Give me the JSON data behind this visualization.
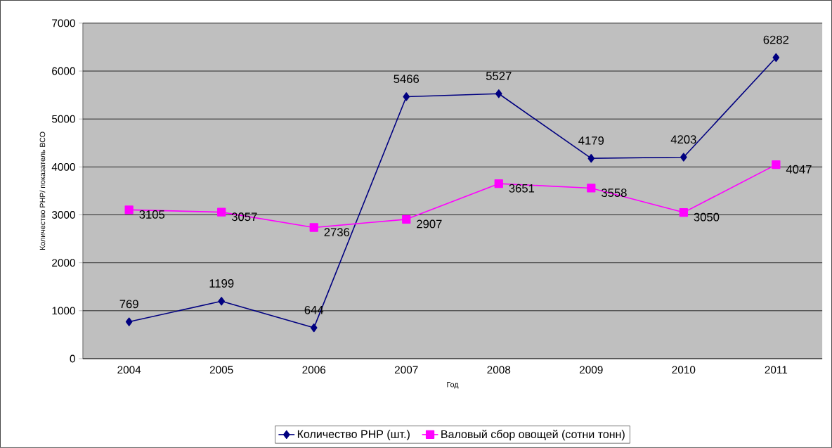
{
  "chart_data": {
    "type": "line",
    "xlabel": "Год",
    "ylabel": "Количество РНР/ показатель ВСО",
    "categories": [
      "2004",
      "2005",
      "2006",
      "2007",
      "2008",
      "2009",
      "2010",
      "2011"
    ],
    "series": [
      {
        "name": "Количество РНР (шт.)",
        "color": "#000080",
        "marker": "diamond",
        "values": [
          769,
          1199,
          644,
          5466,
          5527,
          4179,
          4203,
          6282
        ]
      },
      {
        "name": "Валовый сбор овощей (сотни тонн)",
        "color": "#ff00ff",
        "marker": "square",
        "values": [
          3105,
          3057,
          2736,
          2907,
          3651,
          3558,
          3050,
          4047
        ]
      }
    ],
    "ylim": [
      0,
      7000
    ],
    "yticks": [
      0,
      1000,
      2000,
      3000,
      4000,
      5000,
      6000,
      7000
    ],
    "grid": "y",
    "legend": "bottom",
    "data_labels": true,
    "line_style": "solid"
  }
}
